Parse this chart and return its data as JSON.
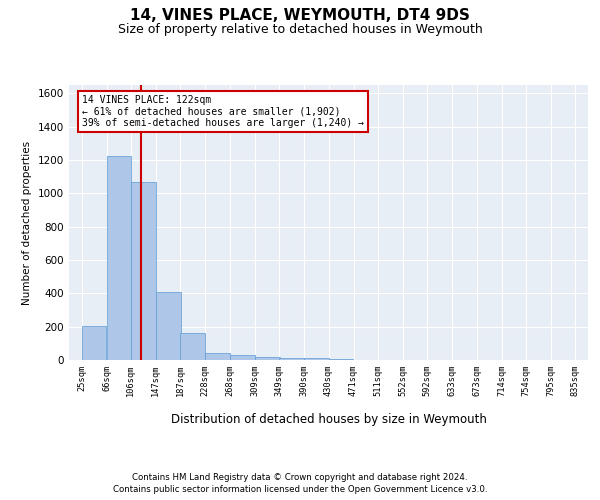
{
  "title": "14, VINES PLACE, WEYMOUTH, DT4 9DS",
  "subtitle": "Size of property relative to detached houses in Weymouth",
  "xlabel": "Distribution of detached houses by size in Weymouth",
  "ylabel": "Number of detached properties",
  "footer_line1": "Contains HM Land Registry data © Crown copyright and database right 2024.",
  "footer_line2": "Contains public sector information licensed under the Open Government Licence v3.0.",
  "annotation_line1": "14 VINES PLACE: 122sqm",
  "annotation_line2": "← 61% of detached houses are smaller (1,902)",
  "annotation_line3": "39% of semi-detached houses are larger (1,240) →",
  "bar_color": "#aec6e8",
  "bar_edge_color": "#5b9bd5",
  "red_line_x": 122,
  "annotation_box_color": "#cc0000",
  "background_color": "#e8eef5",
  "ylim": [
    0,
    1650
  ],
  "bin_edges": [
    25,
    66,
    106,
    147,
    187,
    228,
    268,
    309,
    349,
    390,
    430,
    471,
    511,
    552,
    592,
    633,
    673,
    714,
    754,
    795,
    835
  ],
  "bar_heights": [
    205,
    1225,
    1070,
    410,
    165,
    45,
    28,
    20,
    15,
    10,
    8,
    0,
    0,
    0,
    0,
    0,
    0,
    0,
    0,
    0
  ],
  "tick_labels": [
    "25sqm",
    "66sqm",
    "106sqm",
    "147sqm",
    "187sqm",
    "228sqm",
    "268sqm",
    "309sqm",
    "349sqm",
    "390sqm",
    "430sqm",
    "471sqm",
    "511sqm",
    "552sqm",
    "592sqm",
    "633sqm",
    "673sqm",
    "714sqm",
    "754sqm",
    "795sqm",
    "835sqm"
  ],
  "yticks": [
    0,
    200,
    400,
    600,
    800,
    1000,
    1200,
    1400,
    1600
  ]
}
